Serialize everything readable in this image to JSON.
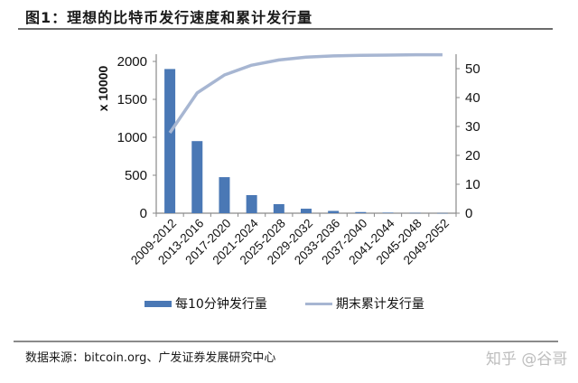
{
  "header": {
    "title": "图1：理想的比特币发行速度和累计发行量"
  },
  "footer": {
    "source": "数据来源：bitcoin.org、广发证券发展研究中心",
    "watermark": "知乎 @谷哥"
  },
  "colors": {
    "bar": "#4a78b5",
    "line": "#a7b6d2",
    "axis": "#8a8a8a"
  },
  "chart_data": {
    "type": "bar+line",
    "title": "图1：理想的比特币发行速度和累计发行量",
    "categories": [
      "2009-2012",
      "2013-2016",
      "2017-2020",
      "2021-2024",
      "2025-2028",
      "2029-2032",
      "2033-2036",
      "2037-2040",
      "2041-2044",
      "2045-2048",
      "2049-2052"
    ],
    "series": [
      {
        "name": "每10分钟发行量",
        "type": "bar",
        "axis": "left",
        "values": [
          1900,
          950,
          475,
          238,
          119,
          59,
          30,
          15,
          7,
          4,
          2
        ]
      },
      {
        "name": "期末累计发行量",
        "type": "line",
        "axis": "right",
        "values": [
          27.8,
          41.6,
          47.8,
          51.2,
          53,
          54,
          54.4,
          54.6,
          54.7,
          54.8,
          54.8
        ]
      }
    ],
    "ylabel": "x 10000",
    "ylim_left": [
      0,
      2000
    ],
    "yticks_left": [
      0,
      500,
      1000,
      1500,
      2000
    ],
    "ylim_right": [
      0,
      55
    ],
    "yticks_right": [
      0,
      10,
      20,
      30,
      40,
      50
    ],
    "legend_position": "bottom",
    "grid": false
  },
  "axis": {
    "ylabel": "x 10000",
    "left_ticks": [
      "2000",
      "1500",
      "1000",
      "500",
      "0"
    ],
    "right_ticks": [
      "50",
      "40",
      "30",
      "20",
      "10",
      "0"
    ]
  },
  "legend": {
    "bar_label": "每10分钟发行量",
    "line_label": "期末累计发行量"
  }
}
